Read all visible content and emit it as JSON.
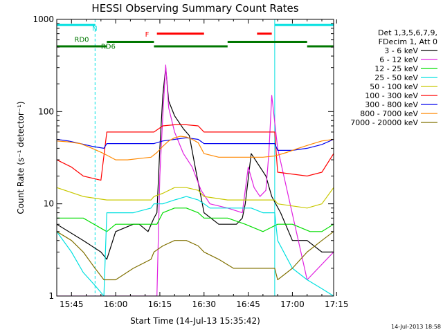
{
  "chart_data": {
    "type": "line",
    "title": "HESSI Observing Summary Count Rates",
    "xlabel": "Start Time (14-Jul-13 15:35:42)",
    "ylabel": "Count Rate (s⁻¹ detector⁻¹)",
    "y_scale": "log",
    "ylim": [
      1,
      1000
    ],
    "xlim_min": [
      40,
      134
    ],
    "x_tick_labels": [
      "15:45",
      "16:00",
      "16:15",
      "16:30",
      "16:45",
      "17:00",
      "17:15"
    ],
    "x_ticks_min": [
      45,
      60,
      75,
      90,
      105,
      120,
      135
    ],
    "y_tick_labels": [
      "1",
      "10",
      "100",
      "1000"
    ],
    "y_ticks": [
      1,
      10,
      100,
      1000
    ],
    "legend": {
      "header": [
        "Det 1,3,5,6,7,9,",
        "FDecim 1, Att 0"
      ],
      "position": "right"
    },
    "series": [
      {
        "name": "3 - 6 keV",
        "color": "#000000",
        "x": [
          40,
          49,
          55,
          57,
          60,
          66,
          68,
          71,
          73,
          74,
          75,
          76,
          77,
          78,
          80,
          83,
          85,
          87,
          90,
          95,
          98,
          101,
          103,
          104,
          106,
          108,
          111,
          113,
          116,
          120,
          125,
          130,
          134
        ],
        "y": [
          6,
          4,
          3,
          2.5,
          5,
          6,
          6,
          5,
          7,
          8,
          40,
          150,
          300,
          130,
          90,
          65,
          55,
          25,
          8,
          6,
          6,
          6,
          7,
          10,
          35,
          28,
          20,
          12,
          8,
          4,
          4,
          3,
          3
        ]
      },
      {
        "name": "6 - 12 keV",
        "color": "#e020e0",
        "x": [
          40,
          57,
          74,
          75,
          76,
          77,
          78,
          80,
          83,
          86,
          89,
          92,
          98,
          103,
          105,
          107,
          109,
          111,
          112,
          113,
          115,
          125,
          134
        ],
        "y": [
          1,
          1,
          1,
          20,
          90,
          320,
          110,
          60,
          35,
          25,
          14,
          10,
          9,
          8,
          25,
          15,
          12,
          14,
          35,
          150,
          40,
          1.5,
          3
        ]
      },
      {
        "name": "12 - 25 keV",
        "color": "#00dd00",
        "x": [
          40,
          49,
          57,
          60,
          66,
          72,
          74,
          76,
          80,
          84,
          88,
          90,
          98,
          104,
          110,
          115,
          120,
          126,
          130,
          134
        ],
        "y": [
          7,
          7,
          5,
          6,
          6,
          6,
          6,
          8,
          9,
          9,
          8,
          7,
          7,
          6,
          5,
          6,
          6,
          5,
          5,
          6
        ]
      },
      {
        "name": "25 - 50 keV",
        "color": "#00e0e0",
        "x": [
          40,
          45,
          49,
          53,
          56,
          57,
          60,
          66,
          72,
          73,
          76,
          80,
          84,
          88,
          90,
          92,
          95,
          98,
          103,
          106,
          110,
          114,
          115,
          120,
          125,
          130,
          134
        ],
        "y": [
          5,
          3,
          1.8,
          1.3,
          1,
          8,
          8,
          8,
          9,
          10,
          10,
          11,
          12,
          11,
          10,
          9,
          9,
          9,
          9,
          9,
          8,
          8,
          4,
          2,
          1.5,
          1.2,
          1
        ]
      },
      {
        "name": "50 - 100 keV",
        "color": "#c8c800",
        "x": [
          40,
          49,
          57,
          62,
          66,
          72,
          73,
          76,
          80,
          84,
          88,
          90,
          98,
          104,
          110,
          114,
          115,
          125,
          130,
          134
        ],
        "y": [
          15,
          12,
          11,
          11,
          11,
          11,
          12,
          13,
          15,
          15,
          14,
          12,
          11,
          11,
          11,
          11,
          10,
          9,
          10,
          15
        ]
      },
      {
        "name": "100 - 300 keV",
        "color": "#ff0000",
        "x": [
          40,
          45,
          49,
          55,
          57,
          60,
          66,
          72,
          73,
          76,
          80,
          84,
          88,
          90,
          95,
          98,
          104,
          110,
          114,
          115,
          125,
          130,
          134
        ],
        "y": [
          30,
          25,
          20,
          18,
          60,
          60,
          60,
          60,
          60,
          70,
          72,
          72,
          70,
          60,
          60,
          60,
          60,
          60,
          60,
          22,
          20,
          22,
          35
        ]
      },
      {
        "name": "300 - 800 keV",
        "color": "#0000ee",
        "x": [
          40,
          44,
          48,
          52,
          56,
          57,
          60,
          66,
          72,
          73,
          76,
          80,
          84,
          88,
          90,
          98,
          104,
          110,
          114,
          115,
          120,
          125,
          130,
          134
        ],
        "y": [
          50,
          48,
          45,
          42,
          40,
          45,
          45,
          45,
          45,
          45,
          48,
          50,
          52,
          50,
          45,
          45,
          45,
          45,
          45,
          38,
          38,
          40,
          44,
          50
        ]
      },
      {
        "name": "800 - 7000 keV",
        "color": "#ff8800",
        "x": [
          40,
          44,
          48,
          52,
          56,
          60,
          64,
          68,
          72,
          74,
          76,
          78,
          80,
          82,
          84,
          86,
          88,
          90,
          95,
          100,
          105,
          110,
          114,
          118,
          122,
          126,
          130,
          134
        ],
        "y": [
          48,
          47,
          45,
          40,
          35,
          30,
          30,
          31,
          32,
          36,
          42,
          48,
          52,
          54,
          53,
          50,
          46,
          35,
          32,
          32,
          32,
          32,
          33,
          36,
          40,
          44,
          48,
          50
        ]
      },
      {
        "name": "7000 - 20000 keV",
        "color": "#807000",
        "x": [
          40,
          45,
          49,
          53,
          56,
          57,
          60,
          66,
          72,
          73,
          76,
          80,
          84,
          88,
          90,
          95,
          100,
          105,
          110,
          114,
          115,
          120,
          125,
          130,
          134
        ],
        "y": [
          5,
          4,
          3,
          2,
          1.5,
          1.5,
          1.5,
          2,
          2.5,
          3,
          3.5,
          4,
          4,
          3.5,
          3,
          2.5,
          2,
          2,
          2,
          2,
          1.5,
          2,
          3,
          4,
          5
        ]
      }
    ],
    "annotations": [
      {
        "text": "N",
        "color": "#00e0e0",
        "x_min": 52,
        "y": 750
      },
      {
        "text": "F",
        "color": "#ff0000",
        "x_min": 70,
        "y": 650
      },
      {
        "text": "RD0",
        "color": "#007700",
        "x_min": 46,
        "y": 570
      },
      {
        "text": "RD6",
        "color": "#007700",
        "x_min": 55,
        "y": 480
      }
    ],
    "state_bars": [
      {
        "label": "N",
        "color": "#00e0e0",
        "y": 870,
        "segments": [
          [
            40,
            53
          ],
          [
            114,
            134
          ]
        ]
      },
      {
        "label": "F",
        "color": "#ff0000",
        "y": 700,
        "segments": [
          [
            74,
            90
          ],
          [
            108,
            113
          ]
        ]
      },
      {
        "label": "RD0",
        "color": "#007700",
        "y": 570,
        "segments": [
          [
            57,
            73
          ],
          [
            98,
            125
          ]
        ]
      },
      {
        "label": "RD6",
        "color": "#007700",
        "y": 510,
        "segments": [
          [
            40,
            57
          ],
          [
            73,
            98
          ],
          [
            125,
            134
          ]
        ]
      }
    ],
    "vertical_markers": [
      {
        "color": "#00e0e0",
        "style": "dashed",
        "x_min": 53
      },
      {
        "color": "#00e0e0",
        "style": "solid",
        "x_min": 114
      },
      {
        "color": "#00e0e0",
        "style": "dashed",
        "x_min": 134
      }
    ]
  },
  "footer": {
    "date_stamp": "14-Jul-2013 18:58"
  }
}
